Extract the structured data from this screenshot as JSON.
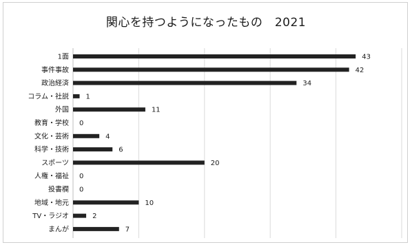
{
  "chart_data": {
    "type": "bar",
    "orientation": "horizontal",
    "title": "関心を持つようになったもの　2021",
    "categories": [
      "1面",
      "事件事故",
      "政治経済",
      "コラム・社説",
      "外国",
      "教育・学校",
      "文化・芸術",
      "科学・技術",
      "スポーツ",
      "人権・福祉",
      "投書欄",
      "地域・地元",
      "TV・ラジオ",
      "まんが"
    ],
    "values": [
      43,
      42,
      34,
      1,
      11,
      0,
      4,
      6,
      20,
      0,
      0,
      10,
      2,
      7
    ],
    "xlim": [
      0,
      50
    ],
    "grid": true,
    "legend": "none",
    "bar_color": "#222222"
  }
}
